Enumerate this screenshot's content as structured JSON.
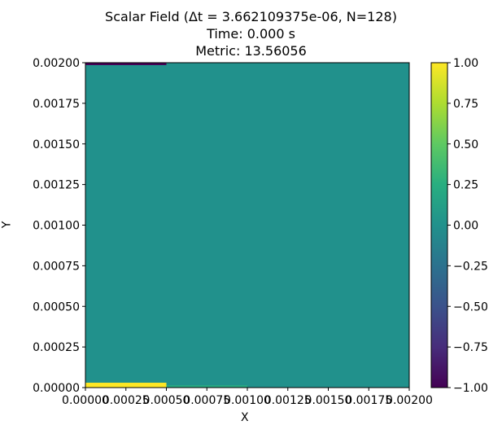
{
  "chart_data": {
    "type": "heatmap",
    "title_lines": [
      "Scalar Field (Δt = 3.662109375e-06, N=128)",
      "Time: 0.000 s",
      "Metric: 13.56056"
    ],
    "xlabel": "X",
    "ylabel": "Y",
    "xlim": [
      0,
      0.002
    ],
    "ylim": [
      0,
      0.002
    ],
    "x_ticks": [
      "0.00000",
      "0.00025",
      "0.00050",
      "0.00075",
      "0.00100",
      "0.00125",
      "0.00150",
      "0.00175",
      "0.00200"
    ],
    "x_tick_values": [
      0,
      0.00025,
      0.0005,
      0.00075,
      0.001,
      0.00125,
      0.0015,
      0.00175,
      0.002
    ],
    "y_ticks": [
      "0.00000",
      "0.00025",
      "0.00050",
      "0.00075",
      "0.00100",
      "0.00125",
      "0.00150",
      "0.00175",
      "0.00200"
    ],
    "y_tick_values": [
      0,
      0.00025,
      0.0005,
      0.00075,
      0.001,
      0.00125,
      0.0015,
      0.00175,
      0.002
    ],
    "background_value": 0.0,
    "regions": [
      {
        "x0": 0,
        "x1": 0.0005,
        "y0": 0,
        "y1": 3e-05,
        "value": 1.0
      },
      {
        "x0": 0.0005,
        "x1": 0.001,
        "y0": 0,
        "y1": 1.5e-05,
        "value": 0.2
      },
      {
        "x0": 0,
        "x1": 0.0005,
        "y0": 0.001985,
        "y1": 0.002,
        "value": -1.0
      }
    ],
    "colorbar": {
      "colormap": "viridis",
      "range": [
        -1.0,
        1.0
      ],
      "ticks": [
        "1.00",
        "0.75",
        "0.50",
        "0.25",
        "0.00",
        "−0.25",
        "−0.50",
        "−0.75",
        "−1.00"
      ],
      "tick_values": [
        1.0,
        0.75,
        0.5,
        0.25,
        0.0,
        -0.25,
        -0.5,
        -0.75,
        -1.0
      ]
    }
  }
}
